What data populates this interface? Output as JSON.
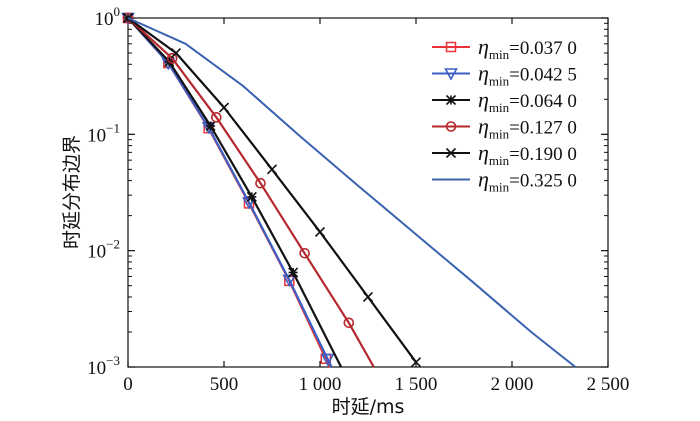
{
  "chart_data": {
    "type": "line",
    "title": "",
    "xlabel": "时延/ms",
    "ylabel": "时延分布边界",
    "xlim": [
      0,
      2500
    ],
    "ylim": [
      0.001,
      1
    ],
    "yscale": "log",
    "xticks": [
      {
        "value": 0,
        "label": "0"
      },
      {
        "value": 500,
        "label": "500"
      },
      {
        "value": 1000,
        "label": "1 000"
      },
      {
        "value": 1500,
        "label": "1 500"
      },
      {
        "value": 2000,
        "label": "2 000"
      },
      {
        "value": 2500,
        "label": "2 500"
      }
    ],
    "yticks": [
      {
        "value": 1,
        "base": "10",
        "exp": "0"
      },
      {
        "value": 0.1,
        "base": "10",
        "exp": "−1"
      },
      {
        "value": 0.01,
        "base": "10",
        "exp": "−2"
      },
      {
        "value": 0.001,
        "base": "10",
        "exp": "−3"
      }
    ],
    "legend_position": "top-right",
    "legend_symbol": "η",
    "legend_subscript": "min",
    "series": [
      {
        "name": "η_min=0.037 0",
        "legend_value": "=0.037 0",
        "color": "#e8333a",
        "marker": "square",
        "x": [
          0,
          210,
          420,
          630,
          840,
          1050
        ],
        "y": [
          1.0,
          0.41,
          0.113,
          0.0255,
          0.0055,
          0.001
        ],
        "marker_x": [
          0,
          210,
          420,
          630,
          840,
          1030
        ]
      },
      {
        "name": "η_min=0.042 5",
        "legend_value": "=0.042 5",
        "color": "#3b5fc4",
        "marker": "triangle-down",
        "x": [
          0,
          210,
          420,
          630,
          840,
          1060
        ],
        "y": [
          1.0,
          0.41,
          0.115,
          0.026,
          0.0056,
          0.001
        ],
        "marker_x": [
          0,
          210,
          420,
          630,
          840,
          1040
        ]
      },
      {
        "name": "η_min=0.064 0",
        "legend_value": "=0.064 0",
        "color": "#111111",
        "marker": "asterisk",
        "x": [
          0,
          215,
          430,
          645,
          860,
          1110
        ],
        "y": [
          1.0,
          0.42,
          0.118,
          0.029,
          0.0065,
          0.001
        ],
        "marker_x": [
          0,
          215,
          430,
          645,
          860
        ]
      },
      {
        "name": "η_min=0.127 0",
        "legend_value": "=0.127 0",
        "color": "#b5282e",
        "marker": "circle",
        "x": [
          0,
          230,
          460,
          690,
          920,
          1150,
          1280
        ],
        "y": [
          1.0,
          0.45,
          0.14,
          0.038,
          0.0095,
          0.0024,
          0.001
        ],
        "marker_x": [
          0,
          230,
          460,
          690,
          920,
          1150
        ]
      },
      {
        "name": "η_min=0.190 0",
        "legend_value": "=0.190 0",
        "color": "#111111",
        "marker": "x",
        "x": [
          0,
          250,
          500,
          750,
          1000,
          1250,
          1500
        ],
        "y": [
          1.0,
          0.5,
          0.17,
          0.05,
          0.0145,
          0.004,
          0.0011
        ],
        "marker_x": [
          0,
          250,
          500,
          750,
          1000,
          1250,
          1500
        ]
      },
      {
        "name": "η_min=0.325 0",
        "legend_value": "=0.325 0",
        "color": "#3a62b0",
        "marker": "none",
        "x": [
          0,
          300,
          600,
          900,
          1200,
          1500,
          1800,
          2100,
          2330
        ],
        "y": [
          1.0,
          0.6,
          0.26,
          0.095,
          0.036,
          0.0138,
          0.0053,
          0.002,
          0.001
        ],
        "marker_x": []
      }
    ]
  }
}
